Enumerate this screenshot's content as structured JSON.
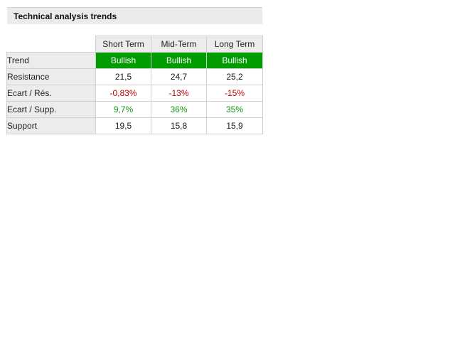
{
  "panel": {
    "title": "Technical analysis trends"
  },
  "columns": [
    "Short Term",
    "Mid-Term",
    "Long Term"
  ],
  "rows": {
    "trend": {
      "label": "Trend",
      "values": [
        "Bullish",
        "Bullish",
        "Bullish"
      ]
    },
    "resistance": {
      "label": "Resistance",
      "values": [
        "21,5",
        "24,7",
        "25,2"
      ]
    },
    "ecart_res": {
      "label": "Ecart / Rés.",
      "values": [
        "-0,83%",
        "-13%",
        "-15%"
      ]
    },
    "ecart_supp": {
      "label": "Ecart / Supp.",
      "values": [
        "9,7%",
        "36%",
        "35%"
      ]
    },
    "support": {
      "label": "Support",
      "values": [
        "19,5",
        "15,8",
        "15,9"
      ]
    }
  },
  "colors": {
    "bullish_bg": "#009c00",
    "negative": "#c00000",
    "positive": "#169616"
  }
}
